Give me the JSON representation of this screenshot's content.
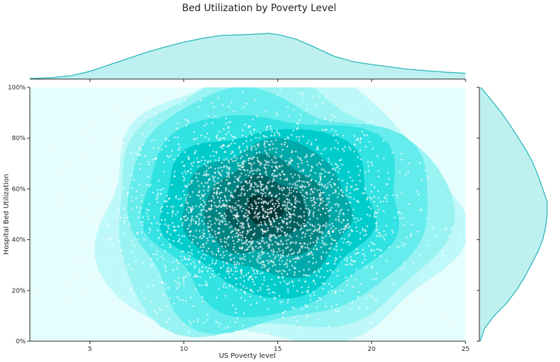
{
  "chart_data": {
    "type": "jointplot-kde-scatter",
    "title": "Bed Utilization by Poverty Level",
    "xlabel": "US Poverty level",
    "ylabel": "Hospital Bed Utilization",
    "xlim": [
      1.8,
      25
    ],
    "ylim": [
      0,
      1
    ],
    "x_ticks": [
      5,
      10,
      15,
      20,
      25
    ],
    "y_ticks": [
      0,
      0.2,
      0.4,
      0.6,
      0.8,
      1.0
    ],
    "y_tick_labels": [
      "0%",
      "20%",
      "40%",
      "60%",
      "80%",
      "100%"
    ],
    "grid": false,
    "colors": {
      "kde_levels": [
        "#e6fdfd",
        "#bff8f8",
        "#99f3f3",
        "#66ecec",
        "#33e2e2",
        "#00cccc",
        "#00aaaa",
        "#008585",
        "#005f5f",
        "#003838"
      ],
      "marginal_fill": "#bff0f0",
      "marginal_line": "#2bb7bb",
      "points": "#ffffff"
    },
    "kde_center": {
      "x": 14.2,
      "y": 0.52
    },
    "kde_levels": [
      0.03,
      0.09,
      0.18,
      0.3,
      0.42,
      0.54,
      0.66,
      0.78,
      0.9
    ],
    "marginal_x_density": [
      [
        1.8,
        0.01
      ],
      [
        3,
        0.03
      ],
      [
        4,
        0.07
      ],
      [
        5,
        0.16
      ],
      [
        6,
        0.29
      ],
      [
        7,
        0.42
      ],
      [
        8,
        0.55
      ],
      [
        9,
        0.66
      ],
      [
        10,
        0.76
      ],
      [
        11,
        0.84
      ],
      [
        12,
        0.9
      ],
      [
        13,
        0.91
      ],
      [
        14,
        0.93
      ],
      [
        14.5,
        0.94
      ],
      [
        15,
        0.92
      ],
      [
        16,
        0.82
      ],
      [
        17,
        0.65
      ],
      [
        18,
        0.47
      ],
      [
        19,
        0.36
      ],
      [
        20,
        0.3
      ],
      [
        21,
        0.25
      ],
      [
        22,
        0.2
      ],
      [
        23,
        0.17
      ],
      [
        24,
        0.14
      ],
      [
        25,
        0.12
      ]
    ],
    "marginal_y_density": [
      [
        0,
        0.01
      ],
      [
        0.05,
        0.07
      ],
      [
        0.1,
        0.2
      ],
      [
        0.15,
        0.37
      ],
      [
        0.2,
        0.5
      ],
      [
        0.25,
        0.61
      ],
      [
        0.3,
        0.7
      ],
      [
        0.35,
        0.79
      ],
      [
        0.4,
        0.86
      ],
      [
        0.45,
        0.9
      ],
      [
        0.5,
        0.92
      ],
      [
        0.55,
        0.92
      ],
      [
        0.6,
        0.86
      ],
      [
        0.65,
        0.8
      ],
      [
        0.7,
        0.73
      ],
      [
        0.75,
        0.64
      ],
      [
        0.8,
        0.53
      ],
      [
        0.85,
        0.42
      ],
      [
        0.9,
        0.3
      ],
      [
        0.95,
        0.16
      ],
      [
        1.0,
        0.02
      ]
    ]
  }
}
